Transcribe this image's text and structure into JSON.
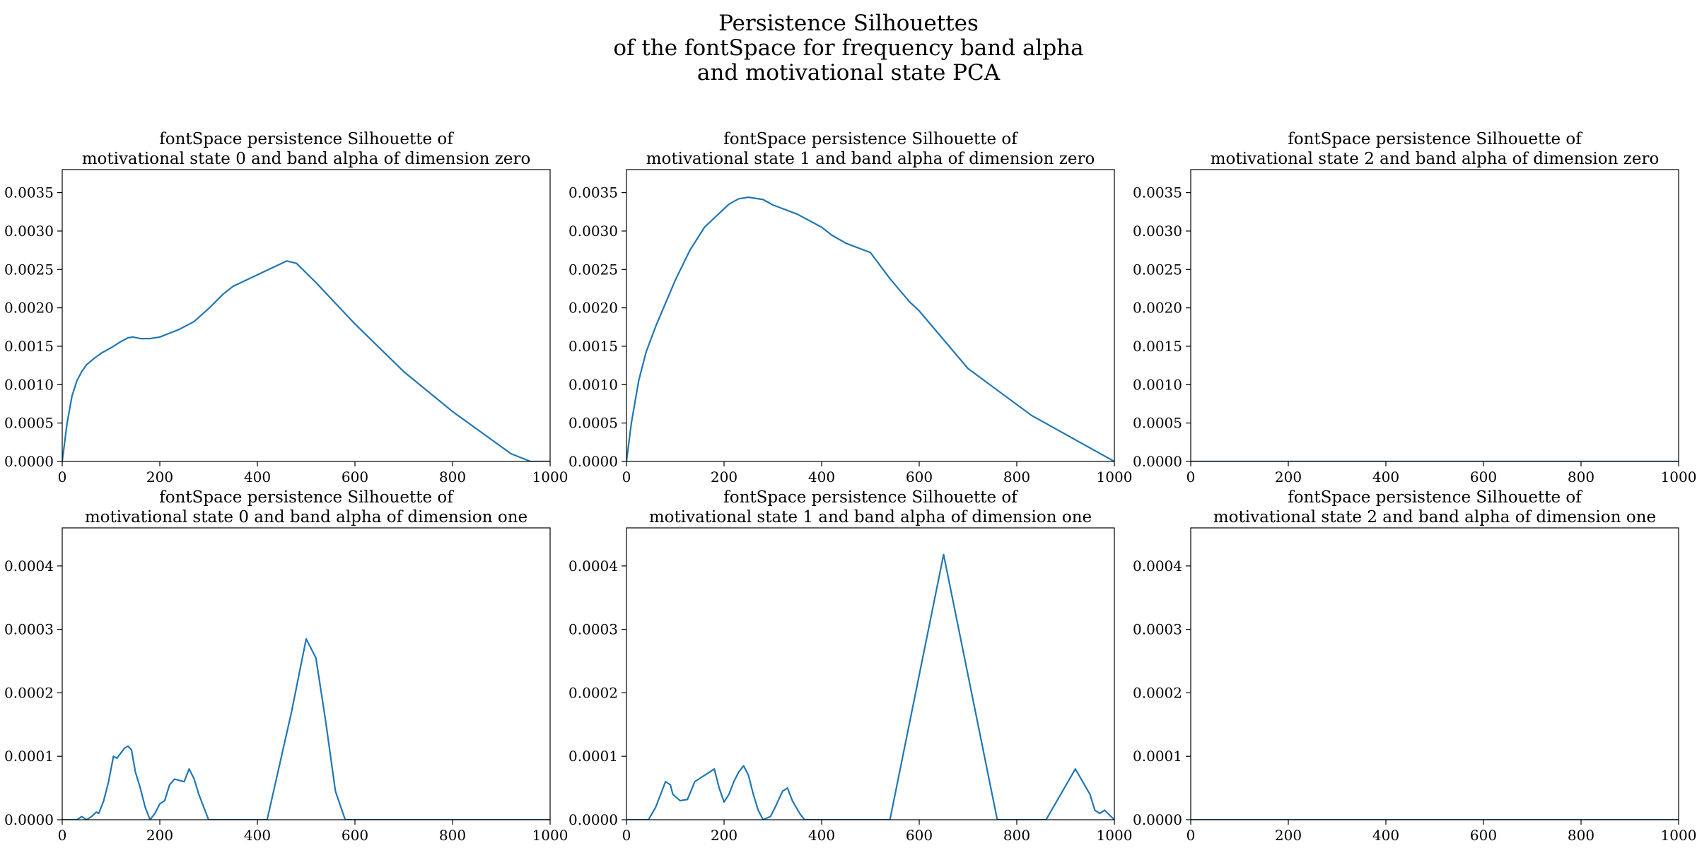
{
  "figure": {
    "title_lines": [
      "Persistence Silhouettes",
      "of the fontSpace for frequency band alpha",
      "and motivational state PCA"
    ],
    "line_color": "#1f77b4"
  },
  "chart_data": [
    {
      "type": "line",
      "title_lines": [
        "fontSpace persistence Silhouette of",
        "motivational state 0 and band alpha of dimension zero"
      ],
      "xlim": [
        0,
        1000
      ],
      "ylim": [
        0,
        0.0038
      ],
      "xticks": [
        0,
        200,
        400,
        600,
        800,
        1000
      ],
      "yticks": [
        0,
        0.0005,
        0.001,
        0.0015,
        0.002,
        0.0025,
        0.003,
        0.0035
      ],
      "ytick_labels": [
        "0.0000",
        "0.0005",
        "0.0010",
        "0.0015",
        "0.0020",
        "0.0025",
        "0.0030",
        "0.0035"
      ],
      "x": [
        0,
        10,
        20,
        30,
        40,
        50,
        65,
        80,
        100,
        120,
        135,
        145,
        160,
        180,
        200,
        220,
        240,
        270,
        300,
        330,
        350,
        400,
        460,
        480,
        520,
        600,
        700,
        800,
        920,
        960,
        1000
      ],
      "y": [
        0,
        0.0005,
        0.00085,
        0.00105,
        0.00117,
        0.00126,
        0.00134,
        0.00141,
        0.00148,
        0.00156,
        0.00161,
        0.00162,
        0.0016,
        0.0016,
        0.00162,
        0.00167,
        0.00172,
        0.00182,
        0.00199,
        0.00218,
        0.00228,
        0.00243,
        0.00261,
        0.00258,
        0.00233,
        0.00179,
        0.00117,
        0.00065,
        0.0001,
        0,
        0
      ]
    },
    {
      "type": "line",
      "title_lines": [
        "fontSpace persistence Silhouette of",
        "motivational state 1 and band alpha of dimension zero"
      ],
      "xlim": [
        0,
        1000
      ],
      "ylim": [
        0,
        0.0038
      ],
      "xticks": [
        0,
        200,
        400,
        600,
        800,
        1000
      ],
      "yticks": [
        0,
        0.0005,
        0.001,
        0.0015,
        0.002,
        0.0025,
        0.003,
        0.0035
      ],
      "ytick_labels": [
        "0.0000",
        "0.0005",
        "0.0010",
        "0.0015",
        "0.0020",
        "0.0025",
        "0.0030",
        "0.0035"
      ],
      "x": [
        0,
        10,
        25,
        40,
        60,
        80,
        100,
        130,
        160,
        190,
        210,
        230,
        250,
        280,
        300,
        350,
        400,
        420,
        450,
        500,
        540,
        580,
        600,
        700,
        830,
        1000
      ],
      "y": [
        0,
        0.0005,
        0.00105,
        0.00142,
        0.00176,
        0.00206,
        0.00236,
        0.00275,
        0.00305,
        0.00323,
        0.00335,
        0.00342,
        0.00344,
        0.00341,
        0.00334,
        0.00322,
        0.00305,
        0.00295,
        0.00284,
        0.00272,
        0.00238,
        0.00208,
        0.00196,
        0.00121,
        0.0006,
        0
      ]
    },
    {
      "type": "line",
      "title_lines": [
        "fontSpace persistence Silhouette of",
        "motivational state 2 and band alpha of dimension zero"
      ],
      "xlim": [
        0,
        1000
      ],
      "ylim": [
        0,
        0.0038
      ],
      "xticks": [
        0,
        200,
        400,
        600,
        800,
        1000
      ],
      "yticks": [
        0,
        0.0005,
        0.001,
        0.0015,
        0.002,
        0.0025,
        0.003,
        0.0035
      ],
      "ytick_labels": [
        "0.0000",
        "0.0005",
        "0.0010",
        "0.0015",
        "0.0020",
        "0.0025",
        "0.0030",
        "0.0035"
      ],
      "x": [
        0,
        1000
      ],
      "y": [
        0,
        0
      ]
    },
    {
      "type": "line",
      "title_lines": [
        "fontSpace persistence Silhouette of",
        "motivational state 0 and band alpha of dimension one"
      ],
      "xlim": [
        0,
        1000
      ],
      "ylim": [
        0,
        0.00046
      ],
      "xticks": [
        0,
        200,
        400,
        600,
        800,
        1000
      ],
      "yticks": [
        0,
        0.0001,
        0.0002,
        0.0003,
        0.0004
      ],
      "ytick_labels": [
        "0.0000",
        "0.0001",
        "0.0002",
        "0.0003",
        "0.0004"
      ],
      "x": [
        0,
        30,
        40,
        50,
        60,
        70,
        75,
        85,
        95,
        105,
        112,
        120,
        128,
        135,
        142,
        150,
        160,
        170,
        180,
        190,
        200,
        210,
        220,
        230,
        240,
        250,
        260,
        270,
        280,
        300,
        420,
        470,
        500,
        520,
        540,
        560,
        580,
        590,
        1000
      ],
      "y": [
        0,
        0,
        5e-06,
        0,
        5e-06,
        1.2e-05,
        1e-05,
        3e-05,
        6e-05,
        0.0001,
        9.7e-05,
        0.000105,
        0.000113,
        0.000116,
        0.00011,
        7.5e-05,
        5e-05,
        2e-05,
        0,
        1e-05,
        2.5e-05,
        3e-05,
        5.5e-05,
        6.4e-05,
        6.2e-05,
        6e-05,
        8e-05,
        6.5e-05,
        4e-05,
        0,
        0,
        0.00017,
        0.000285,
        0.000255,
        0.000155,
        4.5e-05,
        0,
        0,
        0
      ]
    },
    {
      "type": "line",
      "title_lines": [
        "fontSpace persistence Silhouette of",
        "motivational state 1 and band alpha of dimension one"
      ],
      "xlim": [
        0,
        1000
      ],
      "ylim": [
        0,
        0.00046
      ],
      "xticks": [
        0,
        200,
        400,
        600,
        800,
        1000
      ],
      "yticks": [
        0,
        0.0001,
        0.0002,
        0.0003,
        0.0004
      ],
      "ytick_labels": [
        "0.0000",
        "0.0001",
        "0.0002",
        "0.0003",
        "0.0004"
      ],
      "x": [
        0,
        45,
        60,
        70,
        80,
        90,
        95,
        110,
        125,
        140,
        150,
        160,
        170,
        180,
        190,
        200,
        210,
        220,
        230,
        240,
        250,
        260,
        270,
        280,
        295,
        305,
        320,
        330,
        340,
        355,
        365,
        540,
        650,
        760,
        860,
        920,
        950,
        960,
        970,
        980,
        1000
      ],
      "y": [
        0,
        0,
        2e-05,
        4e-05,
        6e-05,
        5.5e-05,
        4e-05,
        3e-05,
        3.2e-05,
        6e-05,
        6.5e-05,
        7e-05,
        7.5e-05,
        8e-05,
        5e-05,
        2.8e-05,
        4e-05,
        6e-05,
        7.5e-05,
        8.5e-05,
        7e-05,
        4e-05,
        1.5e-05,
        0,
        5e-06,
        2e-05,
        4.5e-05,
        5e-05,
        3e-05,
        1e-05,
        0,
        0,
        0.000418,
        0,
        0,
        8e-05,
        4e-05,
        1.5e-05,
        1e-05,
        1.5e-05,
        0
      ]
    },
    {
      "type": "line",
      "title_lines": [
        "fontSpace persistence Silhouette of",
        "motivational state 2 and band alpha of dimension one"
      ],
      "xlim": [
        0,
        1000
      ],
      "ylim": [
        0,
        0.00046
      ],
      "xticks": [
        0,
        200,
        400,
        600,
        800,
        1000
      ],
      "yticks": [
        0,
        0.0001,
        0.0002,
        0.0003,
        0.0004
      ],
      "ytick_labels": [
        "0.0000",
        "0.0001",
        "0.0002",
        "0.0003",
        "0.0004"
      ],
      "x": [
        0,
        1000
      ],
      "y": [
        0,
        0
      ]
    }
  ]
}
